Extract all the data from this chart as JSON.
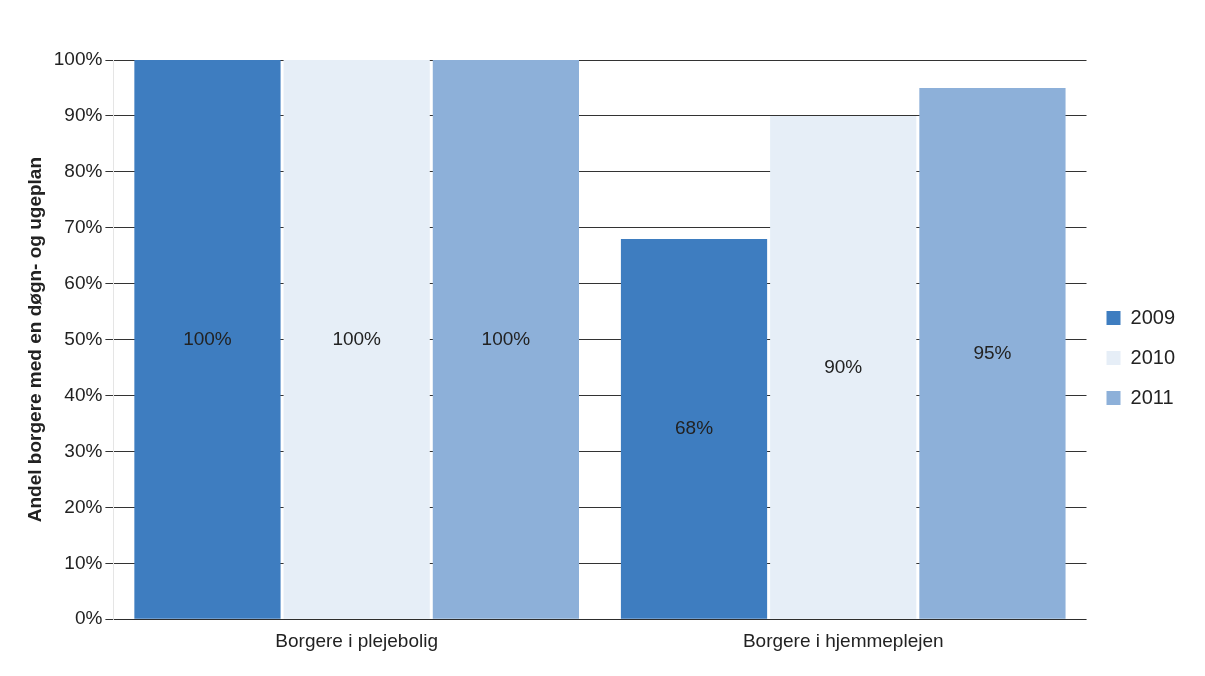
{
  "chart_data": {
    "type": "bar",
    "ylabel": "Andel borgere med en døgn- og ugeplan",
    "categories": [
      "Borgere i plejebolig",
      "Borgere i hjemmeplejen"
    ],
    "series": [
      {
        "name": "2009",
        "color": "#3e7dc0",
        "values": [
          100,
          68
        ],
        "value_labels": [
          "100%",
          "68%"
        ]
      },
      {
        "name": "2010",
        "color": "#e6eef7",
        "values": [
          100,
          90
        ],
        "value_labels": [
          "100%",
          "90%"
        ]
      },
      {
        "name": "2011",
        "color": "#8db0d9",
        "values": [
          100,
          95
        ],
        "value_labels": [
          "100%",
          "95%"
        ]
      }
    ],
    "ylim": [
      0,
      100
    ],
    "yticks": [
      {
        "value": 0,
        "label": "0%"
      },
      {
        "value": 10,
        "label": "10%"
      },
      {
        "value": 20,
        "label": "20%"
      },
      {
        "value": 30,
        "label": "30%"
      },
      {
        "value": 40,
        "label": "40%"
      },
      {
        "value": 50,
        "label": "50%"
      },
      {
        "value": 60,
        "label": "60%"
      },
      {
        "value": 70,
        "label": "70%"
      },
      {
        "value": 80,
        "label": "80%"
      },
      {
        "value": 90,
        "label": "90%"
      },
      {
        "value": 100,
        "label": "100%"
      }
    ],
    "grid": "y",
    "legend": "right"
  }
}
